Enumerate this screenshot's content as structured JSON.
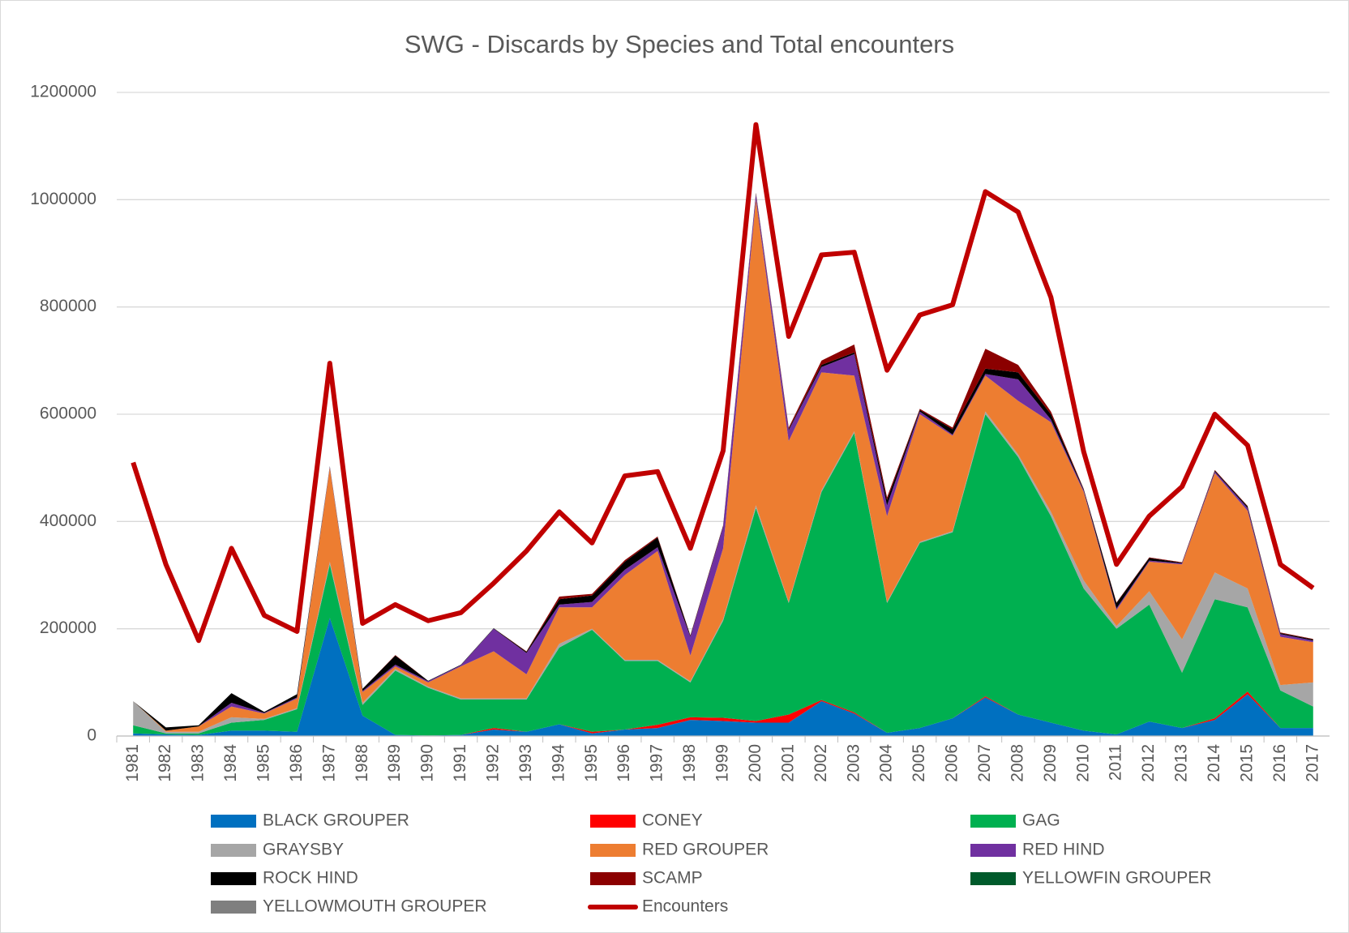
{
  "chart_data": {
    "type": "area",
    "stacked": true,
    "title": "SWG - Discards by Species and Total encounters",
    "categories": [
      "1981",
      "1982",
      "1983",
      "1984",
      "1985",
      "1986",
      "1987",
      "1988",
      "1989",
      "1990",
      "1991",
      "1992",
      "1993",
      "1994",
      "1995",
      "1996",
      "1997",
      "1998",
      "1999",
      "2000",
      "2001",
      "2002",
      "2003",
      "2004",
      "2005",
      "2006",
      "2007",
      "2008",
      "2009",
      "2010",
      "2011",
      "2012",
      "2013",
      "2014",
      "2015",
      "2016",
      "2017"
    ],
    "ylim": [
      0,
      1200000
    ],
    "yticks": [
      0,
      200000,
      400000,
      600000,
      800000,
      1000000,
      1200000
    ],
    "grid": true,
    "legend": "bottom",
    "series": [
      {
        "name": "BLACK GROUPER",
        "color": "#0070c0",
        "values": [
          5000,
          3000,
          2000,
          10000,
          10000,
          8000,
          220000,
          38000,
          2000,
          1000,
          2000,
          12000,
          8000,
          22000,
          5000,
          12000,
          15000,
          30000,
          28000,
          25000,
          25000,
          65000,
          42000,
          6000,
          15000,
          33000,
          72000,
          40000,
          25000,
          10000,
          3000,
          27000,
          15000,
          30000,
          78000,
          15000,
          15000
        ]
      },
      {
        "name": "CONEY",
        "color": "#ff0000",
        "values": [
          0,
          0,
          0,
          0,
          0,
          0,
          0,
          0,
          0,
          0,
          0,
          3000,
          0,
          0,
          3000,
          0,
          6000,
          5000,
          6000,
          3000,
          15000,
          2000,
          2000,
          0,
          0,
          0,
          2000,
          0,
          0,
          0,
          0,
          0,
          0,
          3000,
          5000,
          0,
          0
        ]
      },
      {
        "name": "GAG",
        "color": "#00b050",
        "values": [
          15000,
          2000,
          3000,
          15000,
          20000,
          42000,
          100000,
          20000,
          120000,
          89000,
          66000,
          53000,
          60000,
          143000,
          190000,
          128000,
          119000,
          65000,
          181000,
          397000,
          208000,
          388000,
          521000,
          242000,
          345000,
          347000,
          526000,
          480000,
          385000,
          265000,
          197000,
          218000,
          103000,
          222000,
          157000,
          70000,
          40000
        ]
      },
      {
        "name": "GRAYSBY",
        "color": "#a6a6a6",
        "values": [
          45000,
          3000,
          3000,
          10000,
          2000,
          2000,
          5000,
          4000,
          3000,
          2000,
          2000,
          2000,
          2000,
          7000,
          2000,
          2000,
          2000,
          2000,
          3000,
          5000,
          2000,
          3000,
          3000,
          2000,
          2000,
          2000,
          5000,
          5000,
          8000,
          15000,
          5000,
          25000,
          62000,
          50000,
          35000,
          10000,
          45000
        ]
      },
      {
        "name": "RED GROUPER",
        "color": "#ed7d31",
        "values": [
          0,
          2000,
          10000,
          20000,
          10000,
          18000,
          175000,
          20000,
          5000,
          8000,
          60000,
          88000,
          45000,
          68000,
          40000,
          158000,
          203000,
          48000,
          132000,
          570000,
          300000,
          220000,
          104000,
          160000,
          238000,
          178000,
          67000,
          100000,
          167000,
          165000,
          30000,
          55000,
          140000,
          185000,
          145000,
          90000,
          75000
        ]
      },
      {
        "name": "RED HIND",
        "color": "#7030a0",
        "values": [
          0,
          0,
          0,
          7000,
          1000,
          2000,
          2000,
          2000,
          3000,
          2000,
          2000,
          42000,
          40000,
          5000,
          10000,
          10000,
          7000,
          35000,
          40000,
          10000,
          20000,
          10000,
          40000,
          20000,
          5000,
          2000,
          3000,
          40000,
          5000,
          3000,
          3000,
          2000,
          2000,
          3000,
          5000,
          5000,
          3000
        ]
      },
      {
        "name": "ROCK HIND",
        "color": "#000000",
        "values": [
          0,
          6000,
          2000,
          18000,
          2000,
          6000,
          1000,
          4000,
          17000,
          1000,
          1000,
          1000,
          2000,
          10000,
          12000,
          15000,
          18000,
          2000,
          2000,
          2000,
          2000,
          4000,
          3000,
          10000,
          3000,
          10000,
          10000,
          13000,
          10000,
          2000,
          10000,
          5000,
          1000,
          2000,
          3000,
          2000,
          2000
        ]
      },
      {
        "name": "SCAMP",
        "color": "#8b0000",
        "values": [
          0,
          0,
          0,
          0,
          0,
          0,
          0,
          0,
          1000,
          0,
          0,
          0,
          1000,
          5000,
          3000,
          3000,
          2000,
          1000,
          1000,
          1000,
          3000,
          8000,
          15000,
          5000,
          2000,
          3000,
          37000,
          14000,
          5000,
          1000,
          1000,
          1000,
          1000,
          1000,
          1000,
          1000,
          1000
        ]
      },
      {
        "name": "YELLOWFIN GROUPER",
        "color": "#005a2b",
        "values": [
          0,
          0,
          0,
          0,
          0,
          0,
          0,
          0,
          0,
          0,
          0,
          0,
          0,
          0,
          0,
          0,
          0,
          0,
          0,
          0,
          0,
          0,
          0,
          0,
          0,
          0,
          0,
          0,
          0,
          0,
          0,
          0,
          0,
          0,
          0,
          0,
          0
        ]
      },
      {
        "name": "YELLOWMOUTH GROUPER",
        "color": "#7f7f7f",
        "values": [
          0,
          0,
          0,
          0,
          0,
          0,
          0,
          0,
          0,
          0,
          0,
          0,
          0,
          0,
          0,
          0,
          0,
          0,
          0,
          0,
          0,
          0,
          0,
          0,
          0,
          0,
          0,
          0,
          0,
          0,
          0,
          0,
          0,
          0,
          0,
          0,
          0
        ]
      },
      {
        "name": "Encounters",
        "color": "#c00000",
        "type": "line",
        "values": [
          510000,
          320000,
          178000,
          350000,
          225000,
          195000,
          695000,
          210000,
          245000,
          215000,
          230000,
          285000,
          345000,
          418000,
          360000,
          485000,
          493000,
          350000,
          532000,
          1140000,
          745000,
          897000,
          902000,
          682000,
          785000,
          804000,
          1015000,
          977000,
          818000,
          530000,
          320000,
          410000,
          465000,
          600000,
          542000,
          320000,
          276000
        ]
      }
    ]
  }
}
